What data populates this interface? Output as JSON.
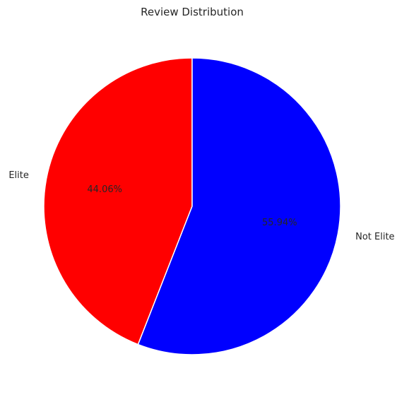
{
  "chart_data": {
    "type": "pie",
    "title": "Review Distribution",
    "labels": [
      "Elite",
      "Not Elite"
    ],
    "values": [
      44.06,
      55.94
    ],
    "pct_labels": [
      "44.06%",
      "55.94%"
    ],
    "colors": [
      "#ff0000",
      "#0000ff"
    ],
    "start_angle_deg": 90,
    "direction": "counterclockwise",
    "legend": "none"
  }
}
